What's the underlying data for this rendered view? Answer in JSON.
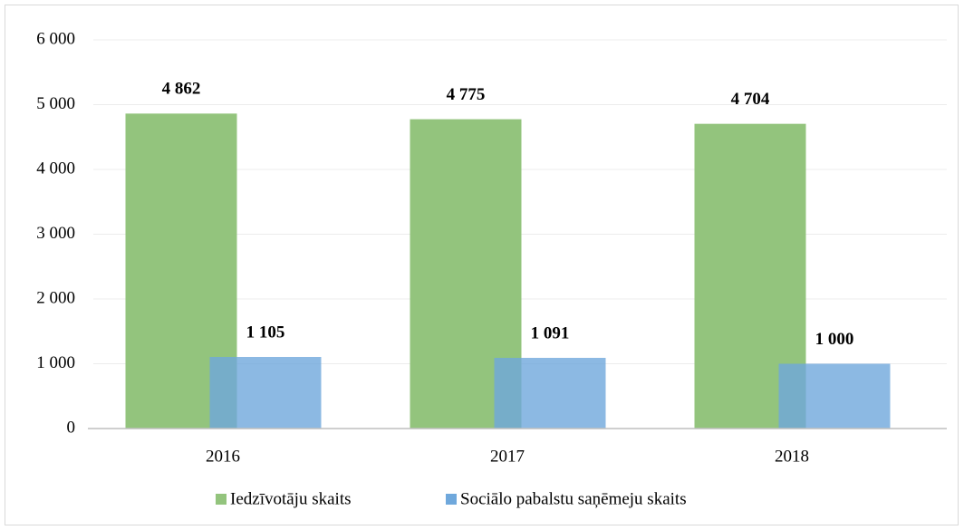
{
  "chart_data": {
    "type": "bar",
    "categories": [
      "2016",
      "2017",
      "2018"
    ],
    "series": [
      {
        "name": "Iedzīvotāju skaits",
        "color": "#93c47d",
        "values": [
          4862,
          4775,
          4704
        ],
        "value_labels": [
          "4 862",
          "4 775",
          "4 704"
        ]
      },
      {
        "name": "Sociālo pabalstu saņēmeju skaits",
        "color": "#6fa8dc",
        "values": [
          1105,
          1091,
          1000
        ],
        "value_labels": [
          "1 105",
          "1 091",
          "1 000"
        ]
      }
    ],
    "ylim": [
      0,
      6000
    ],
    "yticks": [
      {
        "value": 0,
        "label": "0"
      },
      {
        "value": 1000,
        "label": "1 000"
      },
      {
        "value": 2000,
        "label": "2 000"
      },
      {
        "value": 3000,
        "label": "3 000"
      },
      {
        "value": 4000,
        "label": "4 000"
      },
      {
        "value": 5000,
        "label": "5 000"
      },
      {
        "value": 6000,
        "label": "6 000"
      }
    ],
    "grid": true,
    "legend": "bottom"
  }
}
